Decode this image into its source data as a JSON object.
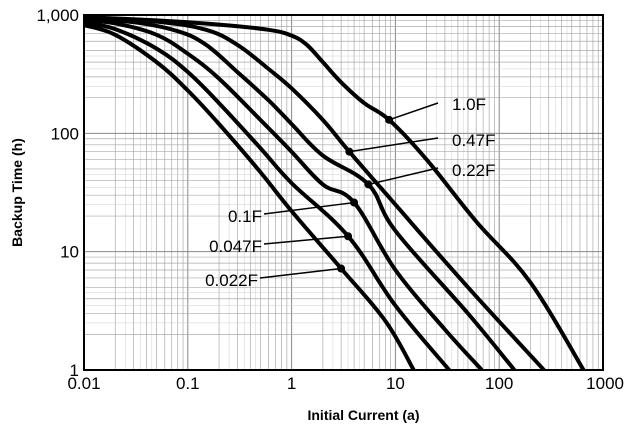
{
  "chart_data": {
    "type": "line",
    "title": "",
    "xlabel": "Initial Current (a)",
    "ylabel": "Backup Time (h)",
    "xscale": "log",
    "yscale": "log",
    "xlim": [
      0.01,
      1000
    ],
    "ylim": [
      1,
      1000
    ],
    "grid": true,
    "legend": "inline labels with leader lines",
    "x_tick_labels": [
      "0.01",
      "0.1",
      "1",
      "10",
      "100",
      "1000"
    ],
    "x_tick_values": [
      0.01,
      0.1,
      1,
      10,
      100,
      1000
    ],
    "y_tick_labels": [
      "1",
      "10",
      "100",
      "1,000"
    ],
    "y_tick_values": [
      1,
      10,
      100,
      1000
    ],
    "colors": {
      "curve": "#000000",
      "grid": "#aaaaaa",
      "axis": "#000000",
      "background": "#ffffff"
    },
    "series": [
      {
        "name": "1.0F",
        "points": [
          [
            0.01,
            960
          ],
          [
            0.05,
            900
          ],
          [
            0.2,
            830
          ],
          [
            0.6,
            750
          ],
          [
            1.0,
            670
          ],
          [
            1.4,
            560
          ],
          [
            2.0,
            400
          ],
          [
            3.0,
            270
          ],
          [
            5.0,
            180
          ],
          [
            8.7,
            130
          ],
          [
            20,
            60
          ],
          [
            60,
            18
          ],
          [
            200,
            5.5
          ],
          [
            650,
            1
          ]
        ],
        "marker": [
          8.7,
          130
        ]
      },
      {
        "name": "0.47F",
        "points": [
          [
            0.01,
            950
          ],
          [
            0.05,
            880
          ],
          [
            0.15,
            750
          ],
          [
            0.3,
            560
          ],
          [
            0.6,
            350
          ],
          [
            1.0,
            240
          ],
          [
            2.0,
            130
          ],
          [
            3.6,
            70
          ],
          [
            10,
            25
          ],
          [
            50,
            5
          ],
          [
            270,
            1
          ]
        ],
        "marker": [
          3.6,
          70
        ]
      },
      {
        "name": "0.22F",
        "points": [
          [
            0.01,
            930
          ],
          [
            0.03,
            870
          ],
          [
            0.08,
            730
          ],
          [
            0.15,
            560
          ],
          [
            0.3,
            330
          ],
          [
            0.6,
            190
          ],
          [
            1.0,
            120
          ],
          [
            2.0,
            65
          ],
          [
            5.5,
            37
          ],
          [
            10,
            15
          ],
          [
            50,
            3
          ],
          [
            140,
            1
          ]
        ],
        "marker": [
          5.5,
          37
        ]
      },
      {
        "name": "0.1F",
        "points": [
          [
            0.01,
            900
          ],
          [
            0.02,
            850
          ],
          [
            0.05,
            680
          ],
          [
            0.1,
            470
          ],
          [
            0.2,
            290
          ],
          [
            0.5,
            130
          ],
          [
            1.0,
            70
          ],
          [
            2.0,
            37
          ],
          [
            4.0,
            26
          ],
          [
            10,
            7
          ],
          [
            30,
            2.2
          ],
          [
            68,
            1
          ]
        ],
        "marker": [
          4.0,
          26
        ]
      },
      {
        "name": "0.047F",
        "points": [
          [
            0.01,
            860
          ],
          [
            0.02,
            760
          ],
          [
            0.05,
            520
          ],
          [
            0.1,
            330
          ],
          [
            0.2,
            180
          ],
          [
            0.5,
            75
          ],
          [
            1.0,
            38
          ],
          [
            3.5,
            13.5
          ],
          [
            10,
            3.5
          ],
          [
            33,
            1
          ]
        ],
        "marker": [
          3.5,
          13.5
        ]
      },
      {
        "name": "0.022F",
        "points": [
          [
            0.01,
            820
          ],
          [
            0.02,
            680
          ],
          [
            0.05,
            400
          ],
          [
            0.1,
            230
          ],
          [
            0.2,
            120
          ],
          [
            0.5,
            47
          ],
          [
            1.0,
            22
          ],
          [
            3.0,
            7.2
          ],
          [
            8,
            2.6
          ],
          [
            15,
            1
          ]
        ],
        "marker": [
          3.0,
          7.2
        ]
      }
    ]
  }
}
